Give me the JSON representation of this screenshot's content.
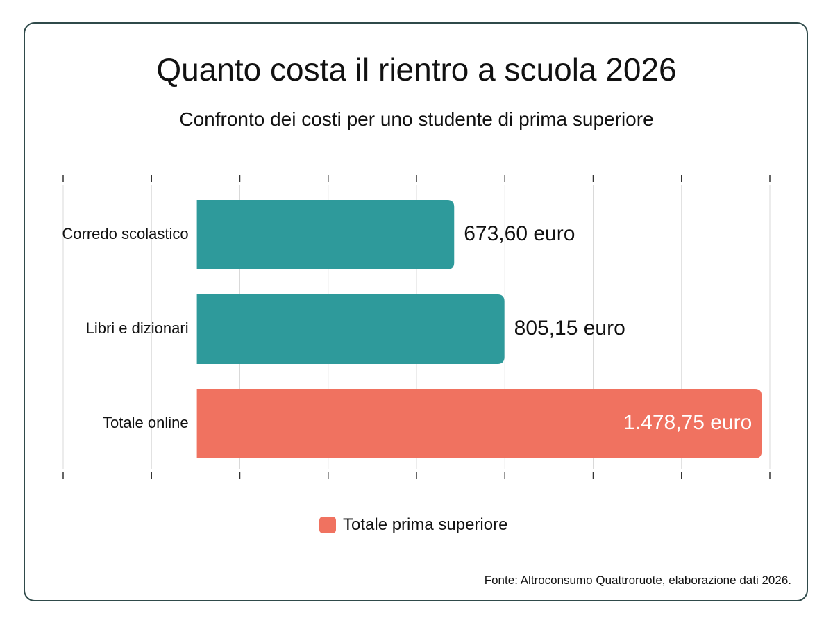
{
  "chart_data": {
    "type": "bar",
    "orientation": "horizontal",
    "title": "Quanto costa il rientro a scuola 2026",
    "subtitle": "Confronto dei costi per uno studente di prima superiore",
    "categories": [
      "Corredo scolastico",
      "Libri e dizionari",
      "Totale online"
    ],
    "values": [
      673.6,
      805.15,
      1478.75
    ],
    "value_labels": [
      "673,60 euro",
      "805,15 euro",
      "1.478,75 euro"
    ],
    "bar_colors": [
      "#2e9a9b",
      "#2e9a9b",
      "#f07260"
    ],
    "xlim": [
      -350,
      1500
    ],
    "grid": true,
    "legend": {
      "placement": "bottom",
      "entries": [
        {
          "label": "Totale prima superiore",
          "color": "#f07260"
        }
      ]
    },
    "source": "Fonte: Altroconsumo Quattroruote, elaborazione dati 2026."
  }
}
